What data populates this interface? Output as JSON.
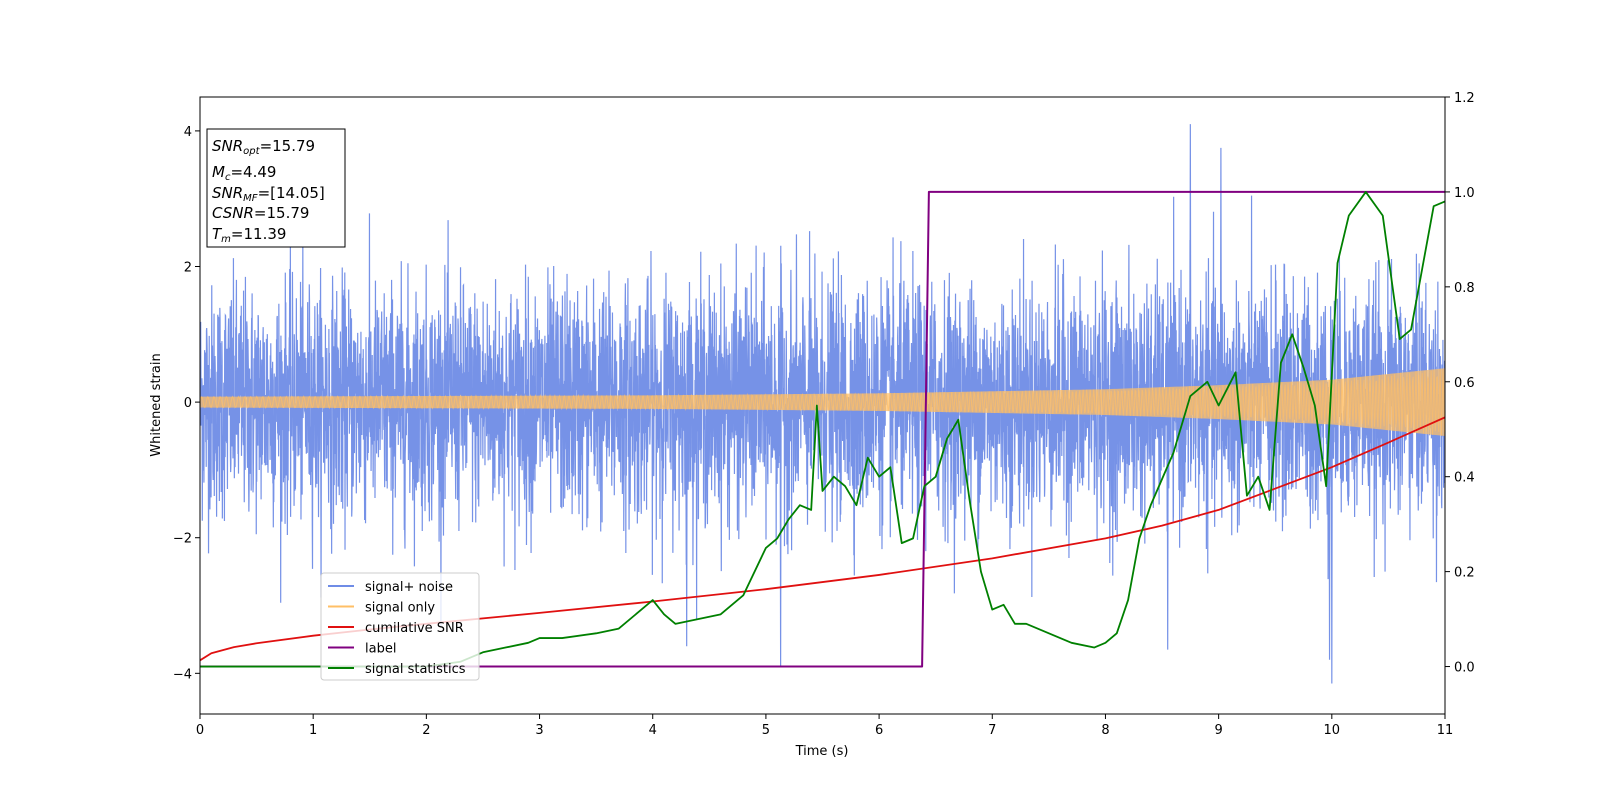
{
  "chart_data": {
    "type": "line",
    "xlabel": "Time (s)",
    "ylabel": "Whitened strain",
    "xlim": [
      0,
      11
    ],
    "ylim": [
      -4.6,
      4.5
    ],
    "ylim_right": [
      -0.1,
      1.2
    ],
    "x_ticks": [
      "0",
      "1",
      "2",
      "3",
      "4",
      "5",
      "6",
      "7",
      "8",
      "9",
      "10",
      "11"
    ],
    "y_ticks": [
      "−4",
      "−2",
      "0",
      "2",
      "4"
    ],
    "y_right_ticks": [
      "0.0",
      "0.2",
      "0.4",
      "0.6",
      "0.8",
      "1.0",
      "1.2"
    ],
    "info_box": {
      "lines": [
        {
          "name": "SNR",
          "sub": "opt",
          "value": "=15.79"
        },
        {
          "name": "M",
          "sub": "c",
          "value": "=4.49"
        },
        {
          "name": "SNR",
          "sub": "MF",
          "value": "=[14.05]"
        },
        {
          "name": "CSNR",
          "sub": "",
          "value": "=15.79"
        },
        {
          "name": "T",
          "sub": "m",
          "value": "=11.39"
        }
      ]
    },
    "legend": {
      "placement": "lower-left",
      "entries": [
        {
          "label": "signal+ noise",
          "color": "#6f8ce6"
        },
        {
          "label": "signal only",
          "color": "#ffbf66"
        },
        {
          "label": "cumilative SNR",
          "color": "#e01010"
        },
        {
          "label": "label",
          "color": "#800080"
        },
        {
          "label": "signal statistics",
          "color": "#008000"
        }
      ]
    },
    "series": [
      {
        "name": "signal+ noise",
        "axis": "left",
        "color": "#6f8ce6",
        "description_noise_std": 0.85,
        "x_range": [
          0,
          11
        ],
        "extremes": [
          [
            5.13,
            -3.9
          ],
          [
            8.75,
            4.1
          ],
          [
            9.02,
            3.75
          ],
          [
            9.98,
            -3.8
          ],
          [
            10.0,
            -4.15
          ],
          [
            4.3,
            -3.6
          ],
          [
            8.55,
            -3.65
          ]
        ]
      },
      {
        "name": "signal only",
        "axis": "left",
        "color": "#ffbf66",
        "amplitude": [
          [
            0,
            0.08
          ],
          [
            2,
            0.09
          ],
          [
            4,
            0.1
          ],
          [
            6,
            0.13
          ],
          [
            8,
            0.19
          ],
          [
            9,
            0.25
          ],
          [
            10,
            0.33
          ],
          [
            11,
            0.5
          ]
        ]
      },
      {
        "name": "cumilative SNR",
        "axis": "right",
        "color": "#e01010",
        "x": [
          0,
          0.1,
          0.3,
          0.5,
          1,
          1.5,
          2,
          3,
          4,
          5,
          6,
          7,
          8,
          8.5,
          9,
          9.5,
          10,
          10.5,
          11
        ],
        "y": [
          0.013,
          0.028,
          0.041,
          0.049,
          0.065,
          0.078,
          0.09,
          0.113,
          0.137,
          0.163,
          0.193,
          0.228,
          0.27,
          0.297,
          0.33,
          0.375,
          0.42,
          0.472,
          0.525
        ]
      },
      {
        "name": "label",
        "axis": "right",
        "color": "#800080",
        "x": [
          0,
          6.38,
          6.44,
          11
        ],
        "y": [
          0,
          0,
          1,
          1
        ]
      },
      {
        "name": "signal statistics",
        "axis": "right",
        "color": "#008000",
        "x": [
          0,
          0.5,
          1,
          1.5,
          2,
          2.3,
          2.5,
          2.7,
          2.9,
          3.0,
          3.2,
          3.5,
          3.7,
          3.9,
          4.0,
          4.1,
          4.2,
          4.4,
          4.6,
          4.8,
          5.0,
          5.1,
          5.2,
          5.3,
          5.4,
          5.45,
          5.5,
          5.6,
          5.7,
          5.8,
          5.9,
          6.0,
          6.1,
          6.2,
          6.3,
          6.4,
          6.5,
          6.6,
          6.7,
          6.8,
          6.9,
          7.0,
          7.1,
          7.2,
          7.3,
          7.5,
          7.7,
          7.9,
          8.0,
          8.1,
          8.2,
          8.3,
          8.4,
          8.6,
          8.75,
          8.9,
          9.0,
          9.15,
          9.25,
          9.35,
          9.45,
          9.55,
          9.65,
          9.75,
          9.85,
          9.95,
          10.05,
          10.15,
          10.3,
          10.45,
          10.6,
          10.7,
          10.8,
          10.9,
          11.0
        ],
        "y": [
          0.0,
          0.0,
          0.0,
          0.0,
          0.0,
          0.01,
          0.03,
          0.04,
          0.05,
          0.06,
          0.06,
          0.07,
          0.08,
          0.12,
          0.14,
          0.11,
          0.09,
          0.1,
          0.11,
          0.15,
          0.25,
          0.27,
          0.31,
          0.34,
          0.33,
          0.55,
          0.37,
          0.4,
          0.38,
          0.34,
          0.44,
          0.4,
          0.42,
          0.26,
          0.27,
          0.38,
          0.4,
          0.48,
          0.52,
          0.35,
          0.2,
          0.12,
          0.13,
          0.09,
          0.09,
          0.07,
          0.05,
          0.04,
          0.05,
          0.07,
          0.14,
          0.27,
          0.34,
          0.45,
          0.57,
          0.6,
          0.55,
          0.62,
          0.36,
          0.4,
          0.33,
          0.64,
          0.7,
          0.63,
          0.55,
          0.38,
          0.85,
          0.95,
          1.0,
          0.95,
          0.69,
          0.71,
          0.84,
          0.97,
          0.98
        ]
      }
    ]
  }
}
